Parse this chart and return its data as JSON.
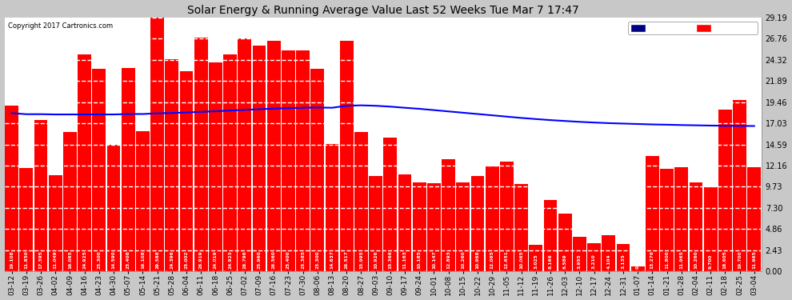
{
  "title": "Solar Energy & Running Average Value Last 52 Weeks Tue Mar 7 17:47",
  "copyright": "Copyright 2017 Cartronics.com",
  "bar_color": "#ff0000",
  "avg_line_color": "#0000ff",
  "background_color": "#ffffff",
  "plot_bg_color": "#ffffff",
  "ylim": [
    0.0,
    29.19
  ],
  "yticks": [
    0.0,
    2.43,
    4.86,
    7.3,
    9.73,
    12.16,
    14.59,
    17.03,
    19.46,
    21.89,
    24.32,
    26.76,
    29.19
  ],
  "legend_avg_color": "#000080",
  "legend_weekly_color": "#ff0000",
  "categories": [
    "03-12",
    "03-19",
    "03-26",
    "04-02",
    "04-09",
    "04-16",
    "04-23",
    "04-30",
    "05-07",
    "05-14",
    "05-21",
    "05-28",
    "06-04",
    "06-11",
    "06-18",
    "06-25",
    "07-02",
    "07-09",
    "07-16",
    "07-23",
    "07-30",
    "08-06",
    "08-13",
    "08-20",
    "08-27",
    "09-03",
    "09-10",
    "09-17",
    "09-24",
    "10-01",
    "10-08",
    "10-15",
    "10-22",
    "10-29",
    "11-05",
    "11-12",
    "11-19",
    "11-26",
    "12-03",
    "12-10",
    "12-17",
    "12-24",
    "12-31",
    "01-07",
    "01-14",
    "01-21",
    "01-28",
    "02-04",
    "02-11",
    "02-18",
    "02-25",
    "03-04"
  ],
  "weekly_values": [
    19.108,
    11.85,
    17.395,
    11.049,
    16.065,
    24.925,
    23.3,
    14.59,
    23.408,
    16.108,
    29.388,
    24.396,
    23.002,
    26.919,
    24.019,
    24.923,
    26.796,
    25.96,
    26.56,
    25.4,
    25.385,
    23.3,
    14.637,
    26.517,
    15.995,
    10.926,
    15.366,
    11.163,
    10.185,
    10.147,
    12.893,
    10.26,
    10.968,
    12.065,
    12.651,
    10.065,
    3.025,
    8.166,
    6.589,
    3.955,
    3.21,
    4.104,
    3.135,
    0.554,
    13.276,
    11.8,
    11.965,
    10.26,
    9.7,
    18.605,
    19.7,
    11.965
  ],
  "avg_values": [
    18.2,
    18.08,
    18.08,
    18.05,
    18.05,
    18.05,
    18.05,
    18.05,
    18.1,
    18.1,
    18.18,
    18.22,
    18.28,
    18.35,
    18.42,
    18.5,
    18.58,
    18.65,
    18.72,
    18.78,
    18.82,
    18.85,
    18.82,
    19.05,
    19.1,
    19.05,
    18.95,
    18.82,
    18.7,
    18.55,
    18.4,
    18.25,
    18.1,
    17.95,
    17.8,
    17.65,
    17.52,
    17.4,
    17.3,
    17.2,
    17.12,
    17.05,
    17.0,
    16.95,
    16.9,
    16.87,
    16.83,
    16.8,
    16.77,
    16.75,
    16.73,
    16.72
  ],
  "grid_color": "#ffffff",
  "grid_linestyle": "--",
  "outer_bg_color": "#c8c8c8"
}
